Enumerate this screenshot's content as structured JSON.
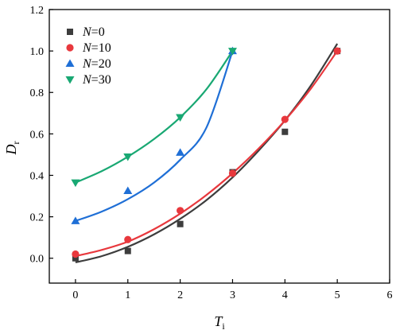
{
  "chart_data": {
    "type": "scatter",
    "title": "",
    "xlabel": {
      "main": "T",
      "sub": "i"
    },
    "ylabel": {
      "main": "D",
      "sub": "r"
    },
    "xlim": [
      -0.5,
      6
    ],
    "ylim": [
      -0.12,
      1.2
    ],
    "xticks": [
      0,
      1,
      2,
      3,
      4,
      5,
      6
    ],
    "yticks": [
      0.0,
      0.2,
      0.4,
      0.6,
      0.8,
      1.0,
      1.2
    ],
    "ytick_labels": [
      "0.0",
      "0.2",
      "0.4",
      "0.6",
      "0.8",
      "1.0",
      "1.2"
    ],
    "grid": false,
    "legend_position": "top-left",
    "series": [
      {
        "name": "N=0",
        "name_var": "N",
        "name_val": "=0",
        "marker": "square",
        "color": "#3d3d3d",
        "points": [
          [
            0,
            0.0
          ],
          [
            1,
            0.035
          ],
          [
            2,
            0.165
          ],
          [
            3,
            0.415
          ],
          [
            4,
            0.61
          ],
          [
            5,
            1.0
          ]
        ],
        "fit": [
          [
            0,
            -0.02
          ],
          [
            0.5,
            0.01
          ],
          [
            1,
            0.055
          ],
          [
            1.5,
            0.115
          ],
          [
            2,
            0.19
          ],
          [
            2.5,
            0.28
          ],
          [
            3,
            0.39
          ],
          [
            3.5,
            0.52
          ],
          [
            4,
            0.665
          ],
          [
            4.5,
            0.835
          ],
          [
            5,
            1.035
          ]
        ]
      },
      {
        "name": "N=10",
        "name_var": "N",
        "name_val": "=10",
        "marker": "circle",
        "color": "#e8383d",
        "points": [
          [
            0,
            0.02
          ],
          [
            1,
            0.09
          ],
          [
            2,
            0.23
          ],
          [
            3,
            0.41
          ],
          [
            4,
            0.67
          ],
          [
            5,
            1.0
          ]
        ],
        "fit": [
          [
            0,
            0.01
          ],
          [
            0.5,
            0.04
          ],
          [
            1,
            0.08
          ],
          [
            1.5,
            0.14
          ],
          [
            2,
            0.215
          ],
          [
            2.5,
            0.305
          ],
          [
            3,
            0.41
          ],
          [
            3.5,
            0.53
          ],
          [
            4,
            0.665
          ],
          [
            4.5,
            0.82
          ],
          [
            5,
            1.0
          ]
        ]
      },
      {
        "name": "N=20",
        "name_var": "N",
        "name_val": "=20",
        "marker": "triangle-up",
        "color": "#1f6fd6",
        "points": [
          [
            0,
            0.18
          ],
          [
            1,
            0.325
          ],
          [
            2,
            0.51
          ],
          [
            3,
            1.0
          ]
        ],
        "fit": [
          [
            0,
            0.18
          ],
          [
            0.5,
            0.225
          ],
          [
            1,
            0.285
          ],
          [
            1.5,
            0.365
          ],
          [
            2,
            0.475
          ],
          [
            2.5,
            0.63
          ],
          [
            3,
            1.0
          ]
        ]
      },
      {
        "name": "N=30",
        "name_var": "N",
        "name_val": "=30",
        "marker": "triangle-down",
        "color": "#19a873",
        "points": [
          [
            0,
            0.365
          ],
          [
            1,
            0.49
          ],
          [
            2,
            0.68
          ],
          [
            3,
            1.0
          ]
        ],
        "fit": [
          [
            0,
            0.365
          ],
          [
            0.5,
            0.42
          ],
          [
            1,
            0.49
          ],
          [
            1.5,
            0.575
          ],
          [
            2,
            0.68
          ],
          [
            2.5,
            0.815
          ],
          [
            3,
            1.0
          ]
        ]
      }
    ]
  }
}
